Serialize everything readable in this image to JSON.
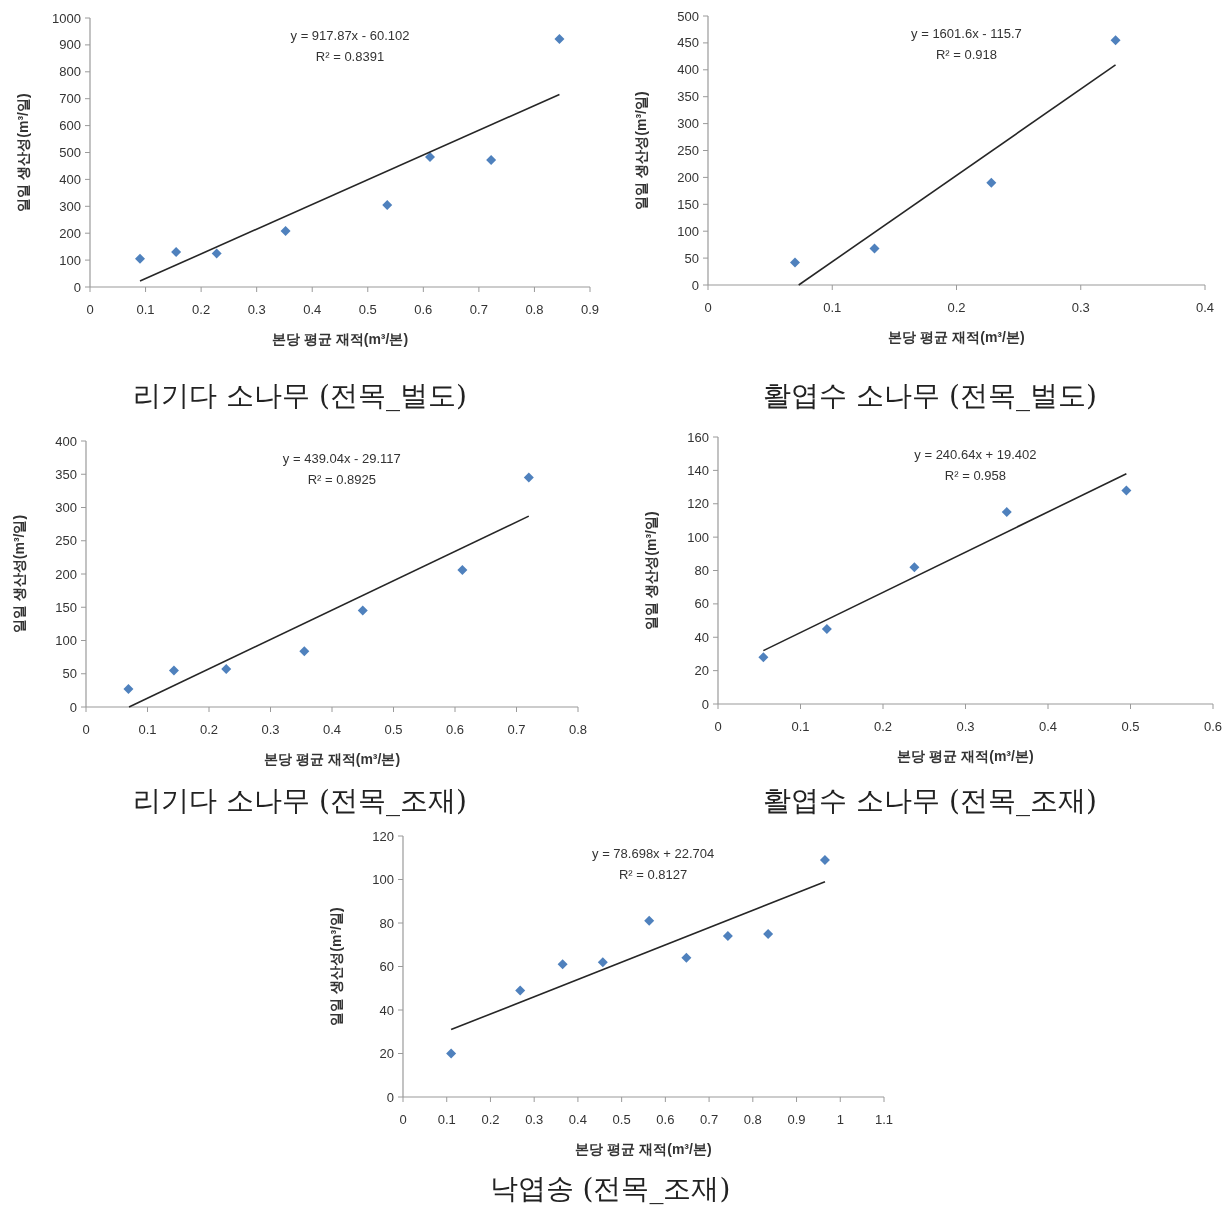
{
  "chart_data": [
    {
      "type": "scatter",
      "title": "리기다 소나무 (전목_벌도)",
      "xlabel": "본당 평균 재적(m³/본)",
      "ylabel": "일일 생산성(m³/일)",
      "annotations": [
        "y = 917.87x - 60.102",
        "R² = 0.8391"
      ],
      "xlim": [
        0,
        0.9
      ],
      "xticks": [
        0,
        0.1,
        0.2,
        0.3,
        0.4,
        0.5,
        0.6,
        0.7,
        0.8,
        0.9
      ],
      "ylim": [
        0,
        1000
      ],
      "yticks": [
        0,
        100,
        200,
        300,
        400,
        500,
        600,
        700,
        800,
        900,
        1000
      ],
      "series": [
        {
          "marker": "diamond",
          "color": "#4f81bd",
          "x": [
            0.09,
            0.155,
            0.228,
            0.352,
            0.535,
            0.612,
            0.722,
            0.845
          ],
          "values": [
            105,
            130,
            125,
            208,
            305,
            483,
            472,
            922
          ]
        },
        {
          "type": "line",
          "color": "#262626",
          "x": [
            0.09,
            0.845
          ],
          "values": [
            22,
            716
          ]
        }
      ]
    },
    {
      "type": "scatter",
      "title": "활엽수 소나무 (전목_벌도)",
      "xlabel": "본당 평균 재적(m³/본)",
      "ylabel": "일일 생산성(m³/일)",
      "annotations": [
        "y = 1601.6x - 115.7",
        "R² = 0.918"
      ],
      "xlim": [
        0,
        0.4
      ],
      "xticks": [
        0,
        0.1,
        0.2,
        0.3,
        0.4
      ],
      "ylim": [
        0,
        500
      ],
      "yticks": [
        0,
        50,
        100,
        150,
        200,
        250,
        300,
        350,
        400,
        450,
        500
      ],
      "series": [
        {
          "marker": "diamond",
          "color": "#4f81bd",
          "x": [
            0.07,
            0.134,
            0.228,
            0.328
          ],
          "values": [
            42,
            68,
            190,
            455
          ]
        },
        {
          "type": "line",
          "color": "#262626",
          "x": [
            0.073,
            0.328
          ],
          "values": [
            0,
            409
          ]
        }
      ]
    },
    {
      "type": "scatter",
      "title": "리기다 소나무 (전목_조재)",
      "xlabel": "본당 평균 재적(m³/본)",
      "ylabel": "일일 생산성(m³/일)",
      "annotations": [
        "y = 439.04x - 29.117",
        "R² = 0.8925"
      ],
      "xlim": [
        0,
        0.8
      ],
      "xticks": [
        0,
        0.1,
        0.2,
        0.3,
        0.4,
        0.5,
        0.6,
        0.7,
        0.8
      ],
      "ylim": [
        0,
        400
      ],
      "yticks": [
        0,
        50,
        100,
        150,
        200,
        250,
        300,
        350,
        400
      ],
      "series": [
        {
          "marker": "diamond",
          "color": "#4f81bd",
          "x": [
            0.069,
            0.143,
            0.228,
            0.355,
            0.45,
            0.612,
            0.72
          ],
          "values": [
            27,
            55,
            57,
            84,
            145,
            206,
            345
          ]
        },
        {
          "type": "line",
          "color": "#262626",
          "x": [
            0.07,
            0.72
          ],
          "values": [
            0,
            287
          ]
        }
      ]
    },
    {
      "type": "scatter",
      "title": "활엽수 소나무 (전목_조재)",
      "xlabel": "본당 평균 재적(m³/본)",
      "ylabel": "일일 생산성(m³/일)",
      "annotations": [
        "y = 240.64x + 19.402",
        "R² = 0.958"
      ],
      "xlim": [
        0,
        0.6
      ],
      "xticks": [
        0,
        0.1,
        0.2,
        0.3,
        0.4,
        0.5,
        0.6
      ],
      "ylim": [
        0,
        160
      ],
      "yticks": [
        0,
        20,
        40,
        60,
        80,
        100,
        120,
        140,
        160
      ],
      "series": [
        {
          "marker": "diamond",
          "color": "#4f81bd",
          "x": [
            0.055,
            0.132,
            0.238,
            0.35,
            0.495
          ],
          "values": [
            28,
            45,
            82,
            115,
            128
          ]
        },
        {
          "type": "line",
          "color": "#262626",
          "x": [
            0.055,
            0.495
          ],
          "values": [
            32,
            138
          ]
        }
      ]
    },
    {
      "type": "scatter",
      "title": "낙엽송 (전목_조재)",
      "xlabel": "본당 평균 재적(m³/본)",
      "ylabel": "일일 생산성(m³/일)",
      "annotations": [
        "y = 78.698x + 22.704",
        "R² = 0.8127"
      ],
      "xlim": [
        0,
        1.1
      ],
      "xticks": [
        0,
        0.1,
        0.2,
        0.3,
        0.4,
        0.5,
        0.6,
        0.7,
        0.8,
        0.9,
        1,
        1.1
      ],
      "ylim": [
        0,
        120
      ],
      "yticks": [
        0,
        20,
        40,
        60,
        80,
        100,
        120
      ],
      "series": [
        {
          "marker": "diamond",
          "color": "#4f81bd",
          "x": [
            0.11,
            0.268,
            0.365,
            0.457,
            0.563,
            0.648,
            0.743,
            0.835,
            0.965
          ],
          "values": [
            20,
            49,
            61,
            62,
            81,
            64,
            74,
            75,
            109
          ]
        },
        {
          "type": "line",
          "color": "#262626",
          "x": [
            0.11,
            0.965
          ],
          "values": [
            31,
            99
          ]
        }
      ]
    }
  ]
}
